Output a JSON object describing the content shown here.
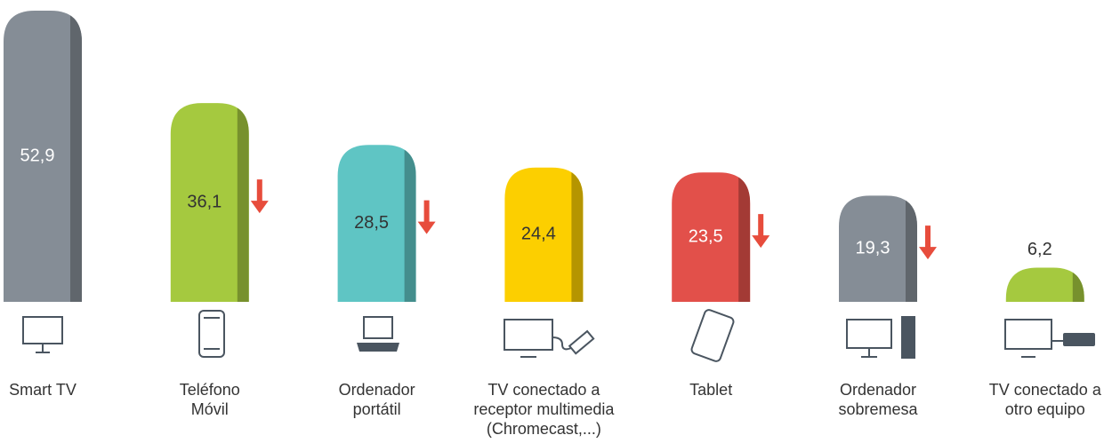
{
  "chart_data": {
    "type": "bar",
    "categories": [
      "Smart TV",
      "Teléfono\nMóvil",
      "Ordenador\nportátil",
      "TV conectado a\nreceptor multimedia\n(Chromecast,...)",
      "Tablet",
      "Ordenador\nsobremesa",
      "TV conectado a\notro equipo"
    ],
    "values": [
      52.9,
      36.1,
      28.5,
      24.4,
      23.5,
      19.3,
      6.2
    ],
    "value_labels": [
      "52,9",
      "36,1",
      "28,5",
      "24,4",
      "23,5",
      "19,3",
      "6,2"
    ],
    "colors": [
      "#858d96",
      "#a5c93f",
      "#5fc5c4",
      "#fccf00",
      "#e2504a",
      "#858d96",
      "#a5c93f"
    ],
    "decrease": [
      false,
      true,
      true,
      false,
      true,
      true,
      false
    ]
  }
}
